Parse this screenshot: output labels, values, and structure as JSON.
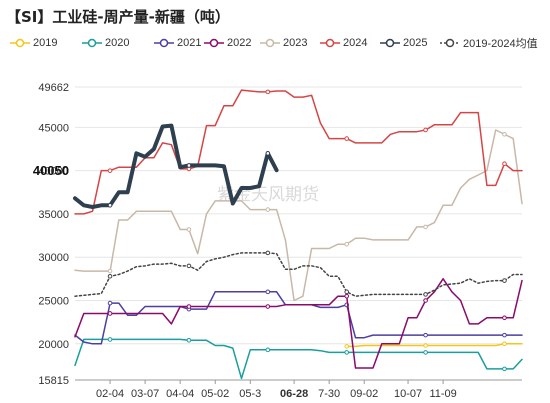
{
  "title": "【SI】工业硅-周产量-新疆（吨）",
  "watermark": "紫金天风期货",
  "chart_data": {
    "type": "line",
    "ylim": [
      15815,
      49662
    ],
    "y_ticks": [
      "49662",
      "45000",
      "40000",
      "35000",
      "30000",
      "25000",
      "20000",
      "15815"
    ],
    "y_tick_values": [
      49662,
      45000,
      40000,
      35000,
      30000,
      25000,
      20000,
      15815
    ],
    "x_range": [
      1,
      52
    ],
    "x_tick_labels": [
      "02-04",
      "03-07",
      "04-04",
      "05-02",
      "05-3",
      "06-28",
      "7-30",
      "09-02",
      "10-07",
      "11-09"
    ],
    "x_tick_positions": [
      5,
      9,
      13,
      17,
      21,
      26,
      30,
      34,
      39,
      43
    ],
    "highlight_x_label": "06-28",
    "current_value_label": "40050",
    "current_value": 40050,
    "series": [
      {
        "name": "2019",
        "color": "#f5c518",
        "width": 1.5,
        "dashed": false,
        "values": [
          null,
          null,
          null,
          null,
          null,
          null,
          null,
          null,
          null,
          null,
          null,
          null,
          null,
          null,
          null,
          null,
          null,
          null,
          null,
          null,
          null,
          null,
          null,
          null,
          null,
          null,
          null,
          null,
          null,
          null,
          null,
          19700,
          19700,
          19800,
          19800,
          19800,
          19800,
          19800,
          19800,
          19800,
          19800,
          19800,
          19800,
          19800,
          19800,
          19800,
          19800,
          19800,
          19800,
          20000,
          20000,
          20000
        ]
      },
      {
        "name": "2020",
        "color": "#1a9e9e",
        "width": 1.5,
        "dashed": false,
        "values": [
          17500,
          20500,
          20500,
          20500,
          20500,
          20500,
          20500,
          20500,
          20500,
          20500,
          20500,
          20500,
          20500,
          20400,
          20400,
          20400,
          19800,
          19800,
          19500,
          16000,
          19300,
          19300,
          19300,
          19300,
          19300,
          19300,
          19300,
          19300,
          19200,
          19000,
          19000,
          19000,
          19000,
          19000,
          19000,
          19000,
          19000,
          19000,
          19000,
          19000,
          19000,
          19000,
          19000,
          19000,
          19000,
          19000,
          19000,
          17100,
          17100,
          17100,
          17100,
          18200
        ]
      },
      {
        "name": "2021",
        "color": "#4b3fa0",
        "width": 1.5,
        "dashed": false,
        "values": [
          21000,
          20200,
          20000,
          20000,
          24700,
          24700,
          23300,
          23300,
          24300,
          24300,
          24300,
          24300,
          24300,
          24000,
          24000,
          24000,
          26000,
          26000,
          26000,
          26000,
          26000,
          26000,
          26000,
          26000,
          24500,
          24500,
          24500,
          24500,
          24200,
          24200,
          24200,
          24500,
          20700,
          20700,
          21000,
          21000,
          21000,
          21000,
          21000,
          21000,
          21000,
          21000,
          21000,
          21000,
          21000,
          21000,
          21000,
          21000,
          21000,
          21000,
          21000,
          21000
        ]
      },
      {
        "name": "2022",
        "color": "#8b0a6a",
        "width": 1.5,
        "dashed": false,
        "values": [
          20800,
          23500,
          23500,
          23500,
          23500,
          23500,
          23500,
          23500,
          23500,
          23500,
          23500,
          22300,
          24300,
          24300,
          24300,
          24300,
          24300,
          24300,
          24300,
          24300,
          24300,
          24300,
          24300,
          24300,
          24500,
          24500,
          24500,
          24500,
          24500,
          24500,
          25500,
          25500,
          17200,
          17200,
          17200,
          20000,
          20000,
          20000,
          23000,
          23000,
          25000,
          26000,
          27500,
          26000,
          25000,
          22300,
          22300,
          23000,
          23000,
          23000,
          23000,
          27300
        ]
      },
      {
        "name": "2023",
        "color": "#c8b8a8",
        "width": 1.5,
        "dashed": false,
        "values": [
          28500,
          28400,
          28400,
          28400,
          28400,
          34300,
          34300,
          35300,
          35300,
          35300,
          35300,
          35300,
          33200,
          33200,
          30400,
          35000,
          36500,
          36500,
          36500,
          36500,
          35500,
          35500,
          35500,
          35500,
          32000,
          25000,
          25500,
          31000,
          31000,
          31000,
          31500,
          31500,
          32200,
          32200,
          32000,
          32000,
          32000,
          32000,
          32000,
          33500,
          33500,
          34000,
          36000,
          36000,
          38000,
          39000,
          39500,
          40000,
          44700,
          44200,
          43700,
          36200
        ]
      },
      {
        "name": "2024",
        "color": "#d64545",
        "width": 1.5,
        "dashed": false,
        "values": [
          35000,
          35000,
          35300,
          40000,
          40000,
          40400,
          40400,
          40400,
          41500,
          41500,
          43200,
          43000,
          40200,
          40200,
          40500,
          45200,
          45200,
          47500,
          47500,
          49300,
          49200,
          49100,
          49100,
          49200,
          49200,
          48500,
          48500,
          48700,
          45500,
          43700,
          43700,
          43700,
          43200,
          43200,
          43200,
          43200,
          44200,
          44500,
          44500,
          44500,
          44700,
          45300,
          45300,
          45300,
          46700,
          46700,
          46700,
          38300,
          38300,
          40800,
          40000,
          40000
        ]
      },
      {
        "name": "2025",
        "color": "#2e3f4f",
        "width": 4,
        "dashed": false,
        "values": [
          36800,
          36000,
          35800,
          36000,
          36000,
          37500,
          37500,
          42000,
          41600,
          42500,
          45100,
          45200,
          40400,
          40600,
          40600,
          40600,
          40600,
          40500,
          36200,
          38000,
          38000,
          38200,
          42000,
          40050,
          null,
          null,
          null,
          null,
          null,
          null,
          null,
          null,
          null,
          null,
          null,
          null,
          null,
          null,
          null,
          null,
          null,
          null,
          null,
          null,
          null,
          null,
          null,
          null,
          null,
          null,
          null,
          null
        ]
      },
      {
        "name": "2019-2024均值",
        "color": "#444444",
        "width": 1.5,
        "dashed": true,
        "values": [
          25500,
          25600,
          25700,
          25800,
          27800,
          28000,
          28400,
          28900,
          29000,
          29200,
          29200,
          29300,
          29000,
          29000,
          28500,
          29500,
          29800,
          30000,
          30300,
          30500,
          30500,
          30500,
          30500,
          30400,
          28600,
          28600,
          29000,
          29000,
          28800,
          27800,
          27800,
          26000,
          25500,
          25600,
          25700,
          25700,
          25700,
          25700,
          25700,
          25700,
          25700,
          26200,
          26800,
          26900,
          27000,
          27500,
          27000,
          27200,
          27300,
          27300,
          28000,
          28000
        ]
      }
    ]
  }
}
